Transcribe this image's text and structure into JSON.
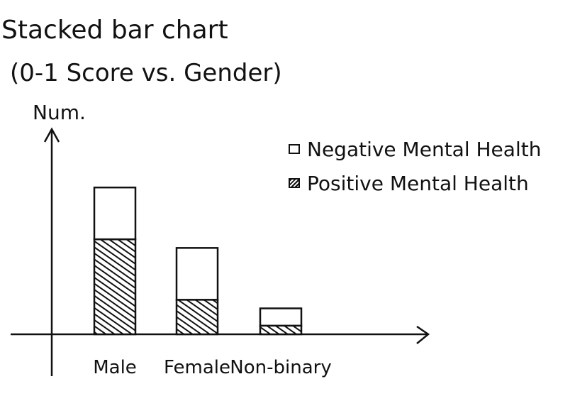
{
  "chart_data": {
    "type": "bar",
    "stacked": true,
    "title": "Stacked bar chart",
    "subtitle": "(0-1 Score vs. Gender)",
    "ylabel": "Num.",
    "xlabel": "",
    "categories": [
      "Male",
      "Female",
      "Non-binary"
    ],
    "series": [
      {
        "name": "Positive Mental Health",
        "values": [
          5.5,
          2.0,
          0.5
        ],
        "fill": "hatched"
      },
      {
        "name": "Negative Mental Health",
        "values": [
          3.0,
          3.0,
          1.0
        ],
        "fill": "empty"
      }
    ],
    "ylim": [
      0,
      12
    ],
    "legend_position": "top-right",
    "grid": false,
    "colors": {
      "ink": "#111111",
      "background": "#ffffff"
    }
  }
}
